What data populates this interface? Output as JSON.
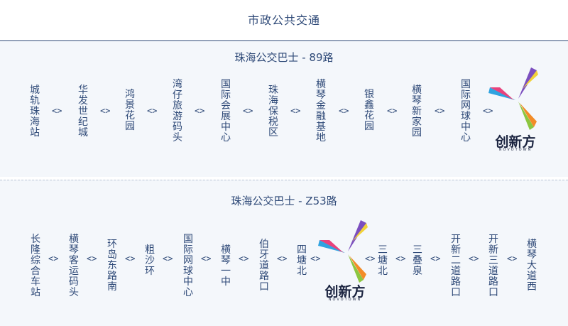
{
  "page_title": "市政公共交通",
  "logo": {
    "text": "创新方",
    "subtext": "NOVOTOWN"
  },
  "arrow_symbol": "<>",
  "routes": [
    {
      "title": "珠海公交巴士 - 89路",
      "stops": [
        "城轨珠海站",
        "华发世纪城",
        "鸿景花园",
        "湾仔旅游码头",
        "国际会展中心",
        "珠海保税区",
        "横琴金融基地",
        "银鑫花园",
        "横琴新家园",
        "国际网球中心"
      ]
    },
    {
      "title": "珠海公交巴士 - Z53路",
      "stops": [
        "长隆综合车站",
        "横琴客运码头",
        "环岛东路南",
        "粗沙环",
        "国际网球中心",
        "横琴一中",
        "伯牙道路口",
        "四塘北",
        "三塘北",
        "三叠泉",
        "开新二道路口",
        "开新三道路口",
        "横琴大道西"
      ]
    }
  ],
  "colors": {
    "text": "#2f4a78",
    "band": "#f4f7fb",
    "logo_petals": [
      "#7b4fbf",
      "#f2d23a",
      "#2fa3e0",
      "#e8427c",
      "#8cc640",
      "#f28c28"
    ]
  }
}
